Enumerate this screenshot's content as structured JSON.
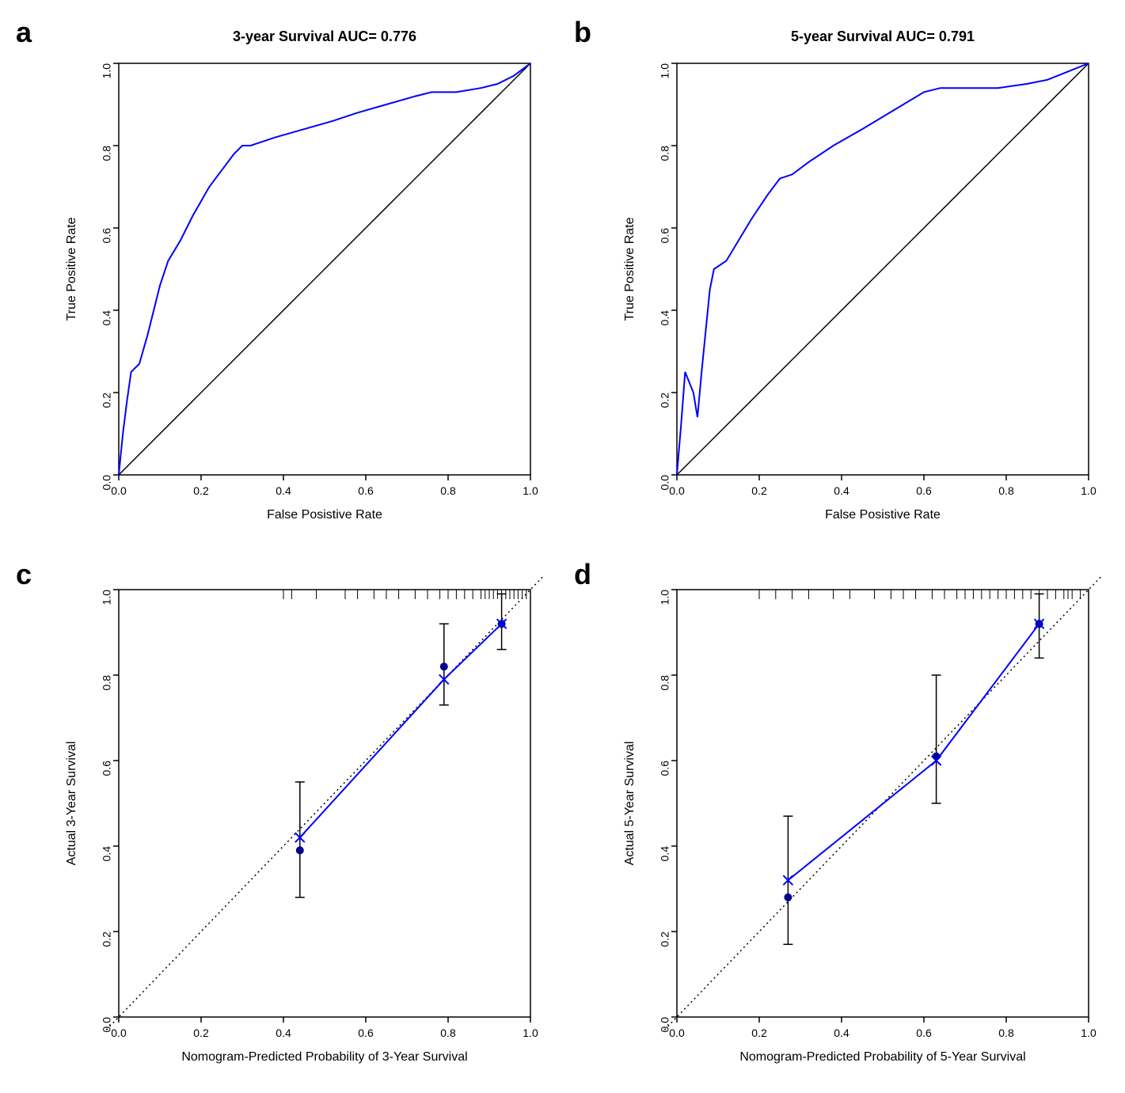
{
  "panels": {
    "a": {
      "label": "a",
      "type": "roc",
      "title": "3-year Survival AUC= 0.776",
      "xlabel": "False Posistive Rate",
      "ylabel": "True Positive Rate",
      "xlim": [
        0,
        1
      ],
      "ylim": [
        0,
        1
      ],
      "xticks": [
        0.0,
        0.2,
        0.4,
        0.6,
        0.8,
        1.0
      ],
      "yticks": [
        0.0,
        0.2,
        0.4,
        0.6,
        0.8,
        1.0
      ],
      "line_color": "#0000ff",
      "diagonal_color": "#000000",
      "background_color": "#ffffff",
      "line_width": 2,
      "roc_points": [
        [
          0.0,
          0.0
        ],
        [
          0.01,
          0.1
        ],
        [
          0.02,
          0.18
        ],
        [
          0.03,
          0.25
        ],
        [
          0.05,
          0.27
        ],
        [
          0.07,
          0.34
        ],
        [
          0.09,
          0.42
        ],
        [
          0.1,
          0.46
        ],
        [
          0.12,
          0.52
        ],
        [
          0.15,
          0.57
        ],
        [
          0.18,
          0.63
        ],
        [
          0.22,
          0.7
        ],
        [
          0.25,
          0.74
        ],
        [
          0.28,
          0.78
        ],
        [
          0.3,
          0.8
        ],
        [
          0.32,
          0.8
        ],
        [
          0.38,
          0.82
        ],
        [
          0.45,
          0.84
        ],
        [
          0.52,
          0.86
        ],
        [
          0.58,
          0.88
        ],
        [
          0.65,
          0.9
        ],
        [
          0.72,
          0.92
        ],
        [
          0.76,
          0.93
        ],
        [
          0.82,
          0.93
        ],
        [
          0.88,
          0.94
        ],
        [
          0.92,
          0.95
        ],
        [
          0.96,
          0.97
        ],
        [
          1.0,
          1.0
        ]
      ]
    },
    "b": {
      "label": "b",
      "type": "roc",
      "title": "5-year Survival AUC= 0.791",
      "xlabel": "False Posistive Rate",
      "ylabel": "True Positive Rate",
      "xlim": [
        0,
        1
      ],
      "ylim": [
        0,
        1
      ],
      "xticks": [
        0.0,
        0.2,
        0.4,
        0.6,
        0.8,
        1.0
      ],
      "yticks": [
        0.0,
        0.2,
        0.4,
        0.6,
        0.8,
        1.0
      ],
      "line_color": "#0000ff",
      "diagonal_color": "#000000",
      "background_color": "#ffffff",
      "line_width": 2,
      "roc_points": [
        [
          0.0,
          0.0
        ],
        [
          0.01,
          0.12
        ],
        [
          0.02,
          0.25
        ],
        [
          0.04,
          0.2
        ],
        [
          0.05,
          0.14
        ],
        [
          0.06,
          0.25
        ],
        [
          0.07,
          0.35
        ],
        [
          0.08,
          0.45
        ],
        [
          0.09,
          0.5
        ],
        [
          0.12,
          0.52
        ],
        [
          0.15,
          0.57
        ],
        [
          0.18,
          0.62
        ],
        [
          0.22,
          0.68
        ],
        [
          0.25,
          0.72
        ],
        [
          0.28,
          0.73
        ],
        [
          0.32,
          0.76
        ],
        [
          0.38,
          0.8
        ],
        [
          0.45,
          0.84
        ],
        [
          0.5,
          0.87
        ],
        [
          0.55,
          0.9
        ],
        [
          0.6,
          0.93
        ],
        [
          0.64,
          0.94
        ],
        [
          0.7,
          0.94
        ],
        [
          0.78,
          0.94
        ],
        [
          0.85,
          0.95
        ],
        [
          0.9,
          0.96
        ],
        [
          0.95,
          0.98
        ],
        [
          1.0,
          1.0
        ]
      ]
    },
    "c": {
      "label": "c",
      "type": "calibration",
      "xlabel": "Nomogram-Predicted Probability of 3-Year Survival",
      "ylabel": "Actual 3-Year Survival",
      "xlim": [
        0,
        1
      ],
      "ylim": [
        0,
        1
      ],
      "xticks": [
        0.0,
        0.2,
        0.4,
        0.6,
        0.8,
        1.0
      ],
      "yticks": [
        0.0,
        0.2,
        0.4,
        0.6,
        0.8,
        1.0
      ],
      "line_color": "#0000ff",
      "dot_color": "#00008b",
      "errorbar_color": "#000000",
      "diagonal_style": "dotted",
      "diagonal_color": "#000000",
      "line_width": 2,
      "marker_size": 5,
      "calibration_points": [
        {
          "x": 0.44,
          "y_dot": 0.39,
          "y_x": 0.42,
          "err_low": 0.28,
          "err_high": 0.55
        },
        {
          "x": 0.79,
          "y_dot": 0.82,
          "y_x": 0.79,
          "err_low": 0.73,
          "err_high": 0.92
        },
        {
          "x": 0.93,
          "y_dot": 0.92,
          "y_x": 0.92,
          "err_low": 0.86,
          "err_high": 0.99
        }
      ],
      "rug_ticks": [
        0.4,
        0.42,
        0.48,
        0.55,
        0.58,
        0.62,
        0.65,
        0.68,
        0.72,
        0.75,
        0.78,
        0.8,
        0.82,
        0.84,
        0.86,
        0.88,
        0.89,
        0.9,
        0.91,
        0.92,
        0.93,
        0.94,
        0.95,
        0.96,
        0.97,
        0.98,
        0.99
      ]
    },
    "d": {
      "label": "d",
      "type": "calibration",
      "xlabel": "Nomogram-Predicted Probability of 5-Year Survival",
      "ylabel": "Actual 5-Year Survival",
      "xlim": [
        0,
        1
      ],
      "ylim": [
        0,
        1
      ],
      "xticks": [
        0.0,
        0.2,
        0.4,
        0.6,
        0.8,
        1.0
      ],
      "yticks": [
        0.0,
        0.2,
        0.4,
        0.6,
        0.8,
        1.0
      ],
      "line_color": "#0000ff",
      "dot_color": "#00008b",
      "errorbar_color": "#000000",
      "diagonal_style": "dotted",
      "diagonal_color": "#000000",
      "line_width": 2,
      "marker_size": 5,
      "calibration_points": [
        {
          "x": 0.27,
          "y_dot": 0.28,
          "y_x": 0.32,
          "err_low": 0.17,
          "err_high": 0.47
        },
        {
          "x": 0.63,
          "y_dot": 0.61,
          "y_x": 0.6,
          "err_low": 0.5,
          "err_high": 0.8
        },
        {
          "x": 0.88,
          "y_dot": 0.92,
          "y_x": 0.92,
          "err_low": 0.84,
          "err_high": 0.99
        }
      ],
      "rug_ticks": [
        0.2,
        0.24,
        0.28,
        0.32,
        0.38,
        0.42,
        0.48,
        0.52,
        0.55,
        0.58,
        0.62,
        0.65,
        0.68,
        0.7,
        0.72,
        0.74,
        0.76,
        0.78,
        0.8,
        0.82,
        0.84,
        0.86,
        0.88,
        0.9,
        0.92,
        0.94,
        0.95,
        0.96,
        0.98
      ]
    }
  },
  "global": {
    "title_fontsize": 18,
    "label_fontsize": 16,
    "tick_fontsize": 14,
    "panel_label_fontsize": 36
  }
}
